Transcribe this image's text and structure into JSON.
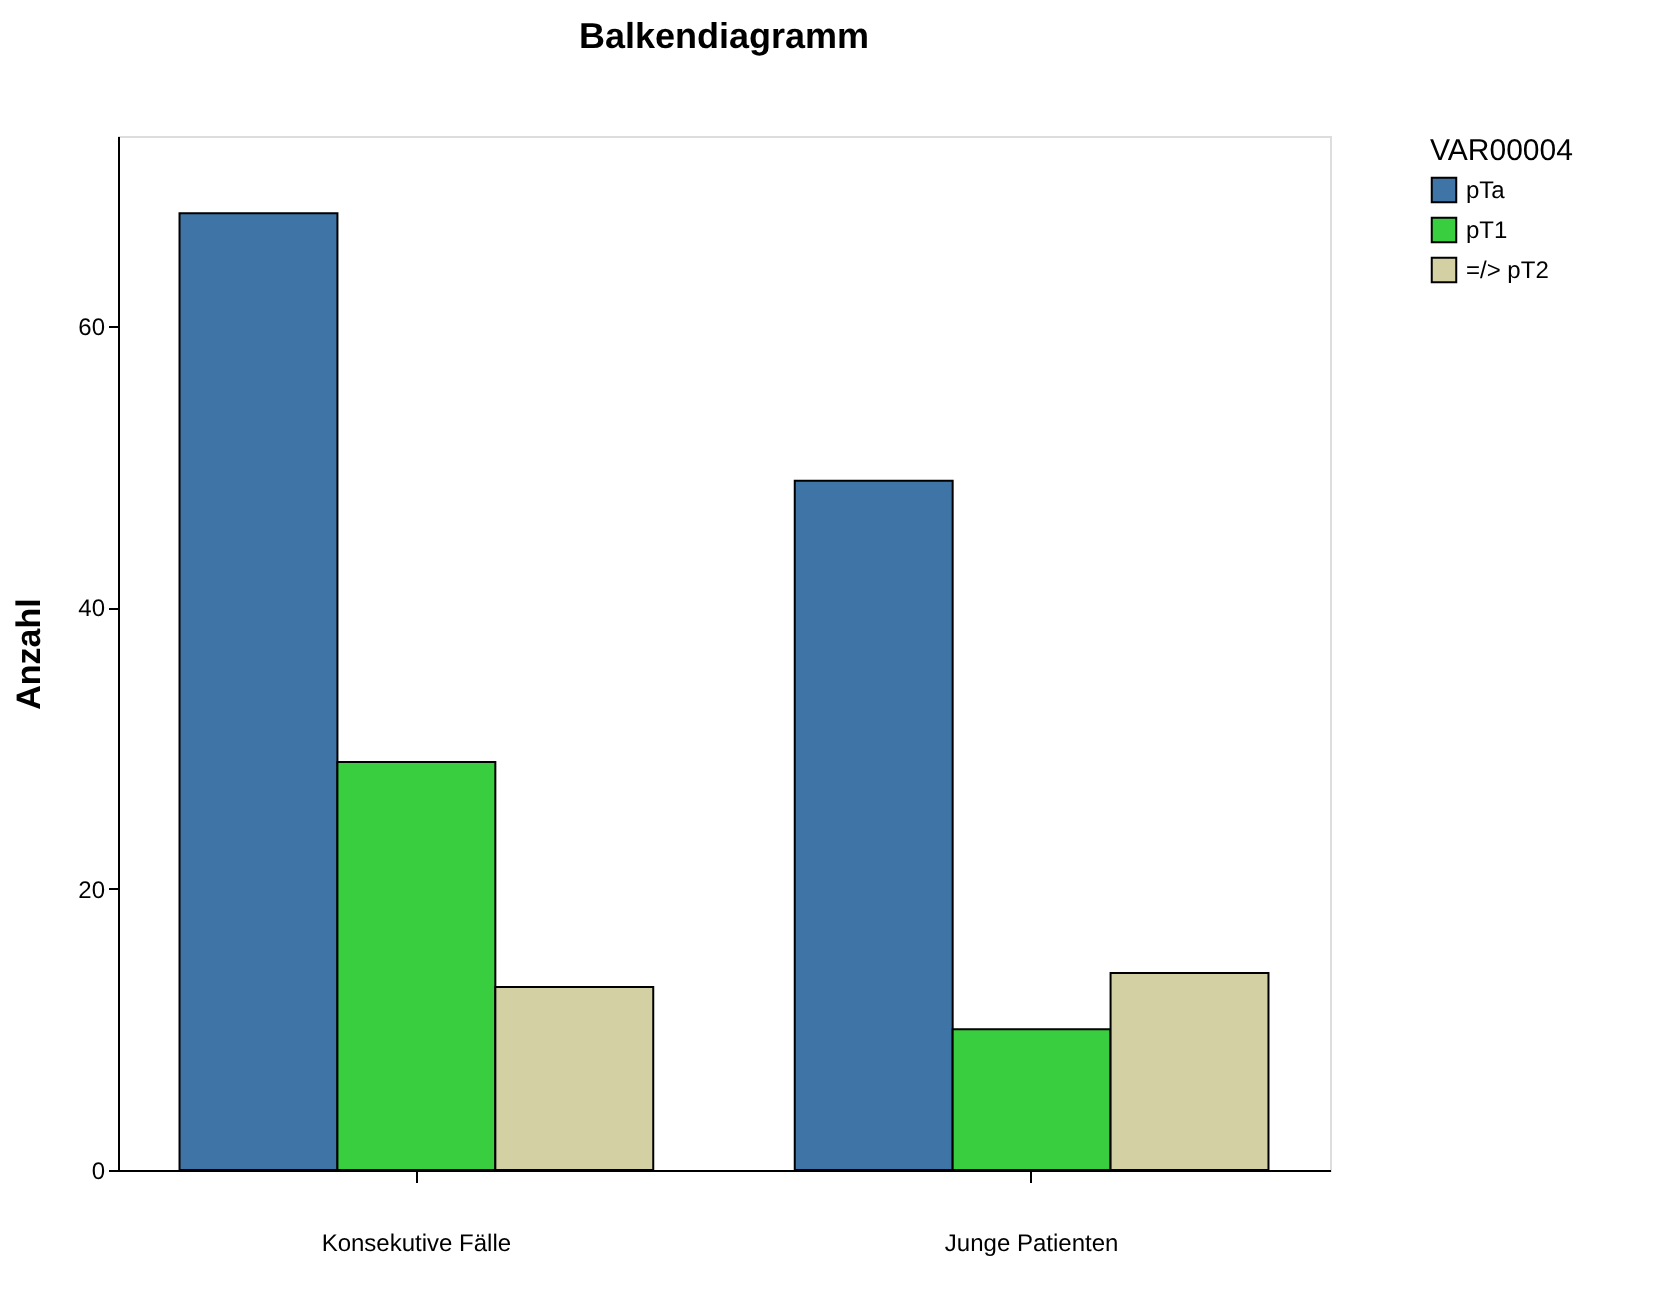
{
  "chart_data": {
    "type": "bar",
    "title": "Balkendiagramm",
    "ylabel": "Anzahl",
    "legend_title": "VAR00004",
    "categories": [
      "Konsekutive Fälle",
      "Junge Patienten"
    ],
    "series": [
      {
        "name": "pTa",
        "color": "#3e75a6",
        "values": [
          68,
          49
        ]
      },
      {
        "name": "pT1",
        "color": "#38ce3f",
        "values": [
          29,
          10
        ]
      },
      {
        "name": "=/> pT2",
        "color": "#d3d0a3",
        "values": [
          13,
          14
        ]
      }
    ],
    "ylim": [
      0,
      73.5
    ],
    "yticks": [
      0,
      20,
      40,
      60
    ],
    "grid": false,
    "legend": "right"
  }
}
